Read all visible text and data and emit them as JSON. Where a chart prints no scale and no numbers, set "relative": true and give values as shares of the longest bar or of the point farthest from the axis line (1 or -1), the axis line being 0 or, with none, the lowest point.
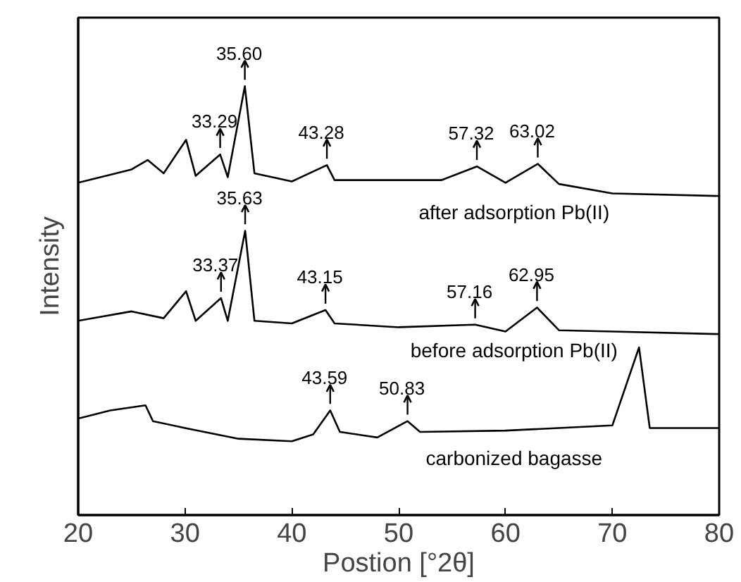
{
  "chart_data": {
    "type": "line",
    "xlabel": "Postion [°2θ]",
    "ylabel": "Intensity",
    "relative": true,
    "tick_labels": "x",
    "xlim": [
      20,
      80
    ],
    "xticks": [
      20,
      30,
      40,
      50,
      60,
      70,
      80
    ],
    "series": [
      {
        "name": "after adsorption Pb(II)",
        "color": "#000000",
        "x": [
          20,
          25,
          26.5,
          28,
          30.1,
          31,
          33.29,
          34,
          35.6,
          36.5,
          40,
          43.28,
          44,
          54,
          57.32,
          60,
          63.02,
          65,
          70,
          80
        ],
        "values": [
          0.775,
          0.806,
          0.828,
          0.797,
          0.875,
          0.791,
          0.841,
          0.788,
          1.0,
          0.797,
          0.778,
          0.816,
          0.781,
          0.781,
          0.813,
          0.775,
          0.819,
          0.772,
          0.75,
          0.744
        ]
      },
      {
        "name": "before adsorption Pb(II)",
        "color": "#000000",
        "x": [
          20,
          25,
          28,
          30.1,
          31,
          33.37,
          34,
          35.63,
          36.5,
          40,
          43.15,
          44,
          50,
          57.16,
          60,
          62.95,
          65,
          70,
          80
        ],
        "values": [
          0.453,
          0.475,
          0.459,
          0.522,
          0.453,
          0.506,
          0.453,
          0.663,
          0.453,
          0.447,
          0.478,
          0.447,
          0.438,
          0.444,
          0.428,
          0.484,
          0.431,
          0.428,
          0.422
        ]
      },
      {
        "name": "carbonized bagasse",
        "color": "#000000",
        "x": [
          20,
          23,
          26.3,
          27,
          30,
          35,
          40,
          42,
          43.59,
          44.5,
          48,
          50.83,
          52,
          60,
          70,
          72.5,
          73.5,
          80
        ],
        "values": [
          0.225,
          0.244,
          0.256,
          0.219,
          0.203,
          0.178,
          0.172,
          0.188,
          0.244,
          0.194,
          0.181,
          0.219,
          0.194,
          0.197,
          0.209,
          0.391,
          0.203,
          0.203
        ]
      }
    ],
    "annotations": [
      {
        "text": "33.29",
        "x": 33.29,
        "y": 0.841
      },
      {
        "text": "35.60",
        "x": 35.6,
        "y": 1.0
      },
      {
        "text": "43.28",
        "x": 43.28,
        "y": 0.816
      },
      {
        "text": "57.32",
        "x": 57.32,
        "y": 0.813
      },
      {
        "text": "63.02",
        "x": 63.02,
        "y": 0.819
      },
      {
        "text": "33.37",
        "x": 33.37,
        "y": 0.506
      },
      {
        "text": "35.63",
        "x": 35.63,
        "y": 0.663
      },
      {
        "text": "43.15",
        "x": 43.15,
        "y": 0.478
      },
      {
        "text": "57.16",
        "x": 57.16,
        "y": 0.444
      },
      {
        "text": "62.95",
        "x": 62.95,
        "y": 0.484
      },
      {
        "text": "43.59",
        "x": 43.59,
        "y": 0.244
      },
      {
        "text": "50.83",
        "x": 50.83,
        "y": 0.219
      }
    ]
  }
}
